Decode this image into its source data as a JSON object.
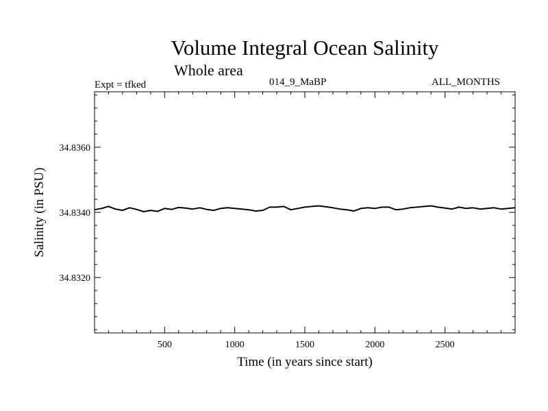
{
  "header": {
    "title": "Volume Integral Ocean Salinity",
    "subtitle": "Whole area",
    "expt": "Expt = tfked",
    "run": "014_9_MaBP",
    "months": "ALL_MONTHS"
  },
  "chart_data": {
    "type": "line",
    "title": "Volume Integral Ocean Salinity",
    "subtitle": "Whole area",
    "xlabel": "Time (in years since start)",
    "ylabel": "Salinity (in PSU)",
    "xlim": [
      0,
      3000
    ],
    "ylim": [
      34.8303,
      34.8377
    ],
    "x_ticks": [
      500,
      1000,
      1500,
      2000,
      2500
    ],
    "x_tick_labels": [
      "500",
      "1000",
      "1500",
      "2000",
      "2500"
    ],
    "y_ticks": [
      34.832,
      34.834,
      34.836
    ],
    "y_tick_labels": [
      "34.8320",
      "34.8340",
      "34.8360"
    ],
    "line_color": "#000000",
    "series": [
      {
        "x": [
          0,
          50,
          100,
          150,
          200,
          250,
          300,
          350,
          400,
          450,
          500,
          550,
          600,
          650,
          700,
          750,
          800,
          850,
          900,
          950,
          1000,
          1050,
          1100,
          1150,
          1200,
          1250,
          1300,
          1350,
          1400,
          1450,
          1500,
          1550,
          1600,
          1650,
          1700,
          1750,
          1800,
          1850,
          1900,
          1950,
          2000,
          2050,
          2100,
          2150,
          2200,
          2250,
          2300,
          2350,
          2400,
          2450,
          2500,
          2550,
          2600,
          2650,
          2700,
          2750,
          2800,
          2850,
          2900,
          2950,
          3000
        ],
        "y": [
          34.83408,
          34.83412,
          34.83418,
          34.8341,
          34.83406,
          34.83414,
          34.83409,
          34.83402,
          34.83406,
          34.83403,
          34.83412,
          34.83409,
          34.83415,
          34.83413,
          34.8341,
          34.83414,
          34.83409,
          34.83406,
          34.83412,
          34.83414,
          34.83412,
          34.8341,
          34.83408,
          34.83404,
          34.83406,
          34.83416,
          34.83416,
          34.83418,
          34.83408,
          34.83412,
          34.83416,
          34.83418,
          34.8342,
          34.83417,
          34.83414,
          34.8341,
          34.83408,
          34.83404,
          34.83412,
          34.83414,
          34.83412,
          34.83416,
          34.83416,
          34.83408,
          34.8341,
          34.83414,
          34.83416,
          34.83418,
          34.8342,
          34.83416,
          34.83413,
          34.8341,
          34.83416,
          34.83412,
          34.83414,
          34.8341,
          34.83412,
          34.83414,
          34.8341,
          34.83412,
          34.83414
        ]
      }
    ]
  }
}
